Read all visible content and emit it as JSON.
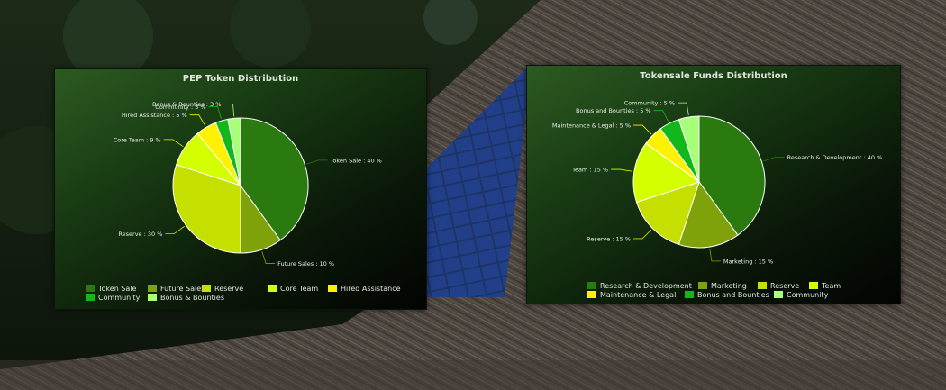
{
  "background": {
    "sky": "#1f2a1c",
    "thatch": "#4a443d",
    "panel_color": "#1b2f5a"
  },
  "chart_data": [
    {
      "type": "pie",
      "title": "PEP Token Distribution",
      "slices": [
        {
          "name": "Token Sale",
          "value": 40,
          "label": "Token Sale : 40 %",
          "color": "#2a7a10"
        },
        {
          "name": "Future Sales",
          "value": 10,
          "label": "Future Sales : 10 %",
          "color": "#7fa20a"
        },
        {
          "name": "Reserve",
          "value": 30,
          "label": "Reserve : 30 %",
          "color": "#c5e000"
        },
        {
          "name": "Core Team",
          "value": 9,
          "label": "Core Team : 9 %",
          "color": "#d4ff00"
        },
        {
          "name": "Hired Assistance",
          "value": 5,
          "label": "Hired Assistance : 5 %",
          "color": "#fff200"
        },
        {
          "name": "Community",
          "value": 3,
          "label": "Community : 3 %",
          "color": "#12b81a"
        },
        {
          "name": "Bonus & Bounties",
          "value": 3,
          "label": "Bonus & Bounties : 3 %",
          "color": "#a8ff78"
        }
      ],
      "legend_placement": "bottom"
    },
    {
      "type": "pie",
      "title": "Tokensale Funds Distribution",
      "slices": [
        {
          "name": "Research & Development",
          "value": 40,
          "label": "Research & Development : 40 %",
          "color": "#2a7a10"
        },
        {
          "name": "Marketing",
          "value": 15,
          "label": "Marketing : 15 %",
          "color": "#7fa20a"
        },
        {
          "name": "Reserve",
          "value": 15,
          "label": "Reserve : 15 %",
          "color": "#c5e000"
        },
        {
          "name": "Team",
          "value": 15,
          "label": "Team : 15 %",
          "color": "#d4ff00"
        },
        {
          "name": "Maintenance & Legal",
          "value": 5,
          "label": "Maintenance & Legal : 5 %",
          "color": "#fff200"
        },
        {
          "name": "Bonus and Bounties",
          "value": 5,
          "label": "Bonus and Bounties : 5 %",
          "color": "#12b81a"
        },
        {
          "name": "Community",
          "value": 5,
          "label": "Community : 5 %",
          "color": "#a8ff78"
        }
      ],
      "legend_placement": "bottom"
    }
  ]
}
